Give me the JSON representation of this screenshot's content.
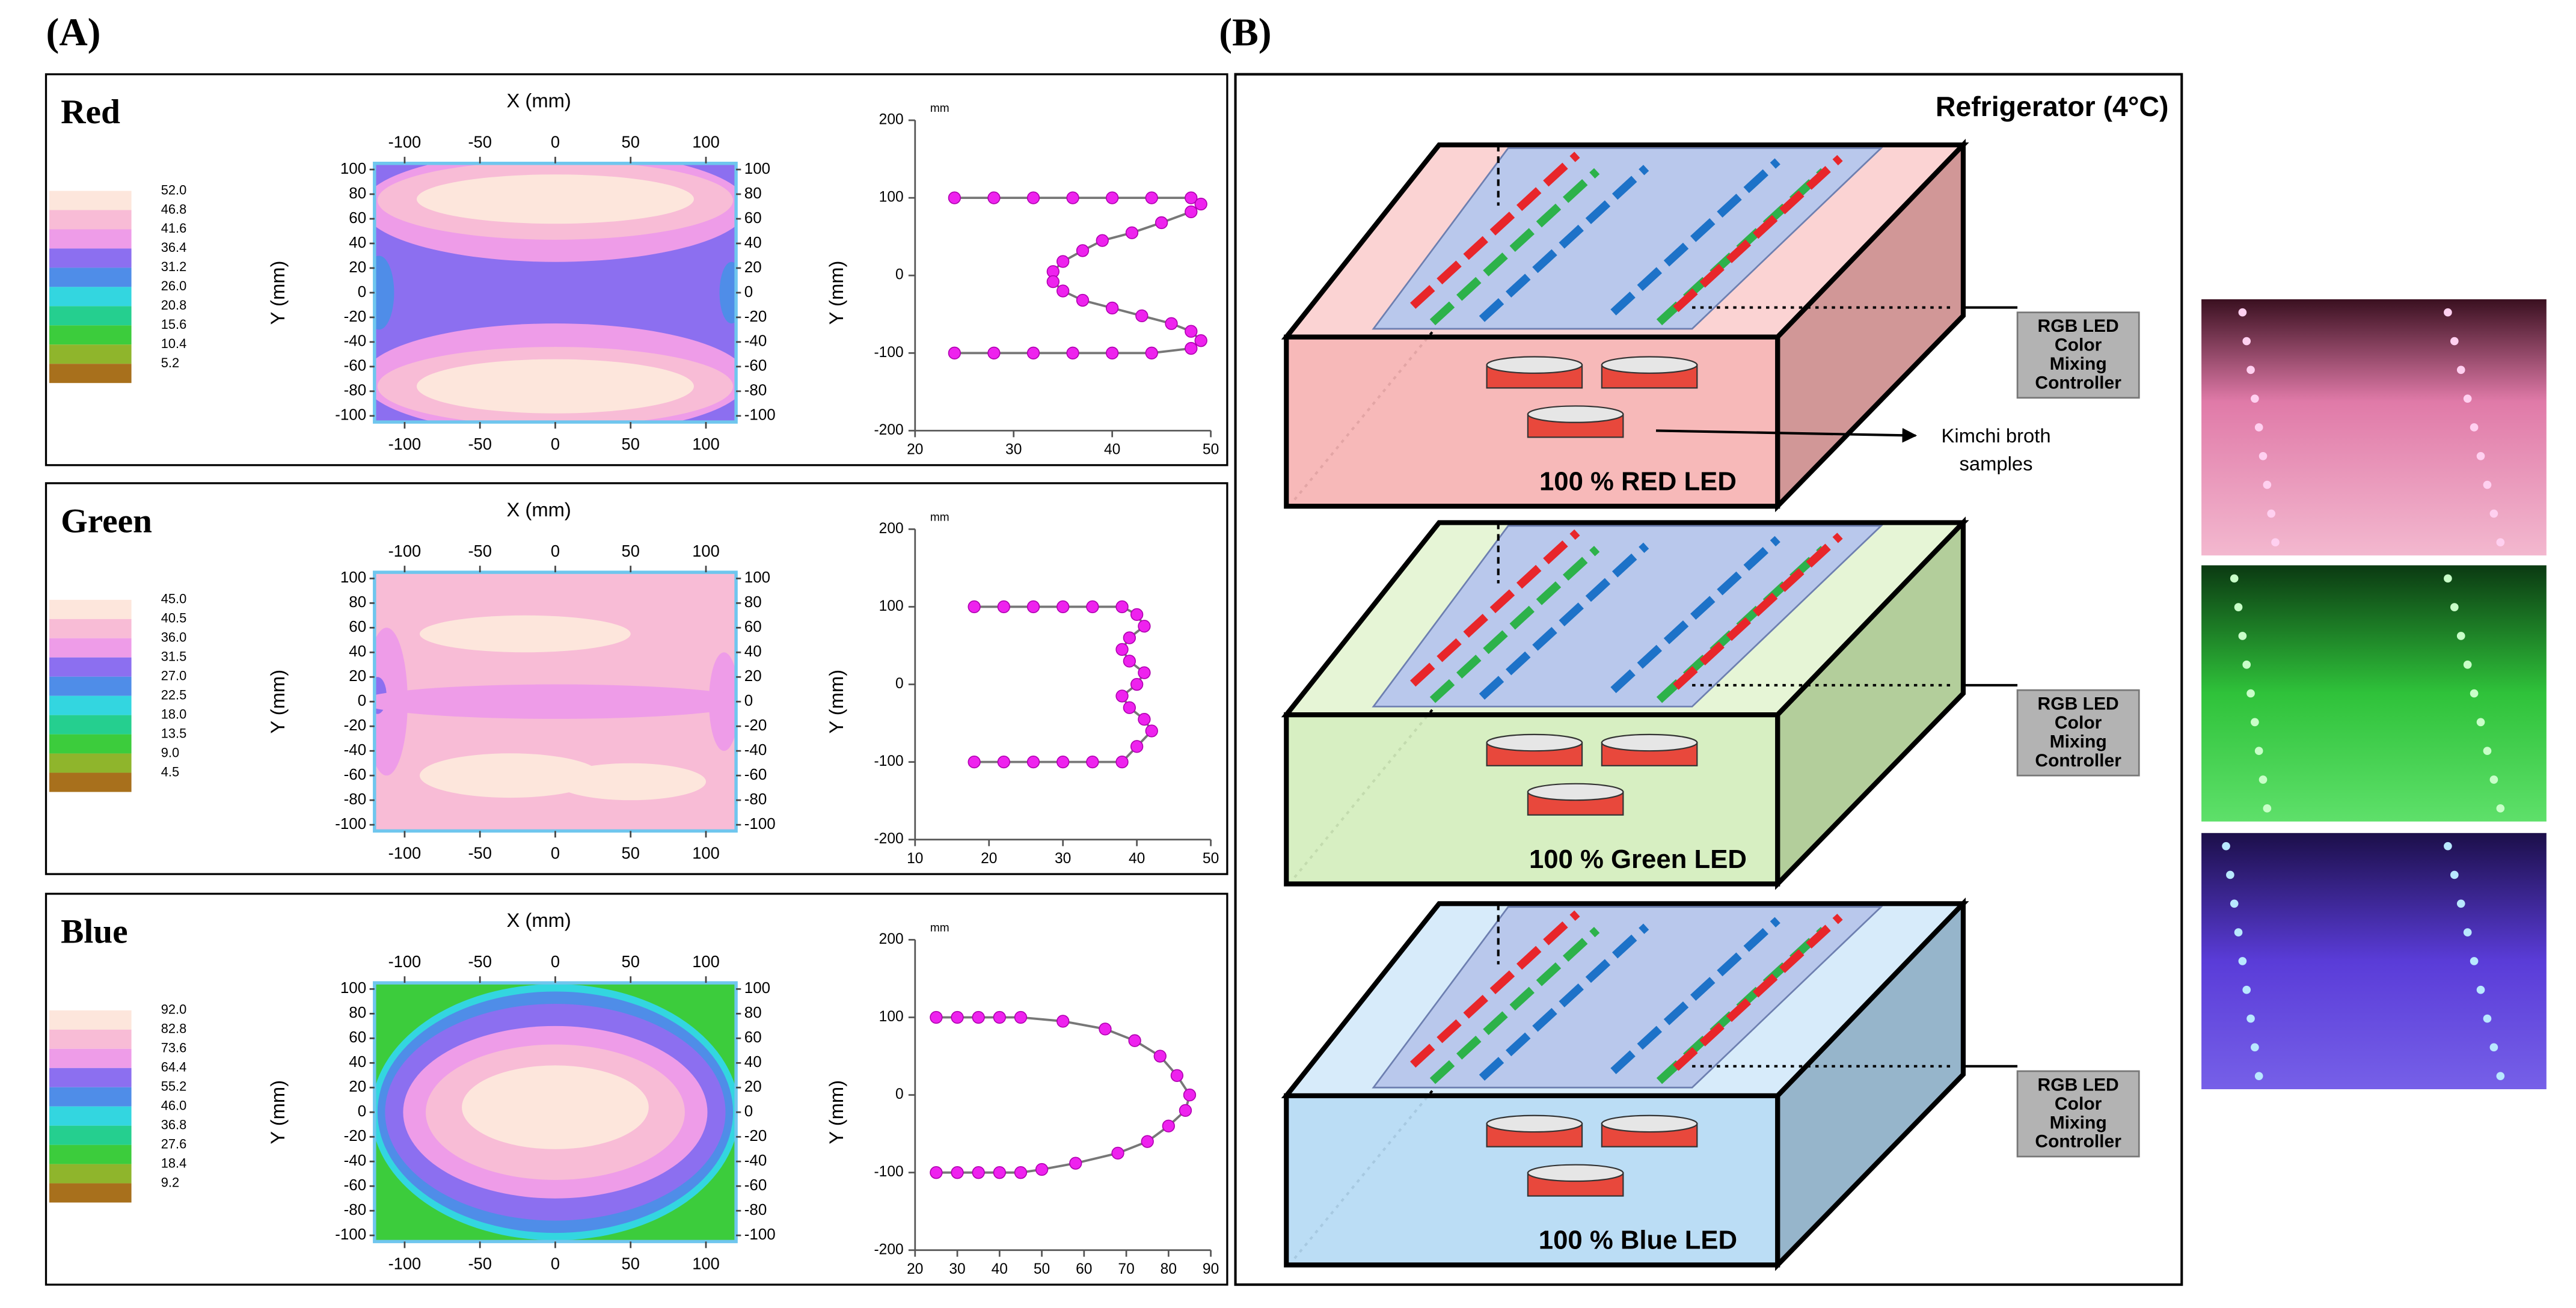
{
  "panel_a": {
    "label": "(A)",
    "rows": [
      {
        "name": "Red",
        "legend": [
          {
            "value": 52,
            "label": "52.0"
          },
          {
            "value": 46.8,
            "label": "46.8"
          },
          {
            "value": 41.6,
            "label": "41.6"
          },
          {
            "value": 36.4,
            "label": "36.4"
          },
          {
            "value": 31.2,
            "label": "31.2"
          },
          {
            "value": 26,
            "label": "26.0"
          },
          {
            "value": 20.8,
            "label": "20.8"
          },
          {
            "value": 15.6,
            "label": "15.6"
          },
          {
            "value": 10.4,
            "label": "10.4"
          },
          {
            "value": 5.2,
            "label": "5.2"
          }
        ],
        "map": {
          "x_label": "X (mm)",
          "y_label": "Y (mm)",
          "xlim": [
            -120,
            120
          ],
          "ylim": [
            -105,
            105
          ],
          "xticks": [
            -100,
            -50,
            0,
            50,
            100
          ],
          "yticks": [
            100,
            80,
            60,
            40,
            20,
            0,
            -20,
            -40,
            -60,
            -80,
            -100
          ]
        },
        "profile": {
          "type": "line",
          "unit": "mm",
          "color": "#ee22ee",
          "xlim": [
            20,
            50
          ],
          "xticks": [
            20,
            30,
            40,
            50
          ],
          "ylim": [
            -200,
            200
          ],
          "yticks": [
            200,
            100,
            0,
            -100,
            -200
          ],
          "x": [
            24,
            28,
            32,
            36,
            40,
            44,
            48,
            49,
            48,
            45,
            42,
            39,
            37,
            35,
            34,
            34,
            35,
            37,
            40,
            43,
            46,
            48,
            49,
            48,
            44,
            40,
            36,
            32,
            28,
            24
          ],
          "y": [
            100,
            100,
            100,
            100,
            100,
            100,
            100,
            92,
            82,
            68,
            55,
            45,
            32,
            18,
            5,
            -8,
            -20,
            -32,
            -42,
            -52,
            -62,
            -72,
            -84,
            -94,
            -100,
            -100,
            -100,
            -100,
            -100,
            -100
          ]
        }
      },
      {
        "name": "Green",
        "legend": [
          {
            "value": 45,
            "label": "45.0"
          },
          {
            "value": 40.5,
            "label": "40.5"
          },
          {
            "value": 36,
            "label": "36.0"
          },
          {
            "value": 31.5,
            "label": "31.5"
          },
          {
            "value": 27,
            "label": "27.0"
          },
          {
            "value": 22.5,
            "label": "22.5"
          },
          {
            "value": 18,
            "label": "18.0"
          },
          {
            "value": 13.5,
            "label": "13.5"
          },
          {
            "value": 9,
            "label": "9.0"
          },
          {
            "value": 4.5,
            "label": "4.5"
          }
        ],
        "map": {
          "x_label": "X (mm)",
          "y_label": "Y (mm)",
          "xlim": [
            -120,
            120
          ],
          "ylim": [
            -105,
            105
          ],
          "xticks": [
            -100,
            -50,
            0,
            50,
            100
          ],
          "yticks": [
            100,
            80,
            60,
            40,
            20,
            0,
            -20,
            -40,
            -60,
            -80,
            -100
          ]
        },
        "profile": {
          "type": "line",
          "unit": "mm",
          "color": "#ee22ee",
          "xlim": [
            10,
            50
          ],
          "xticks": [
            10,
            20,
            30,
            40,
            50
          ],
          "ylim": [
            -200,
            200
          ],
          "yticks": [
            200,
            100,
            0,
            -100,
            -200
          ],
          "x": [
            18,
            22,
            26,
            30,
            34,
            38,
            40,
            41,
            39,
            38,
            39,
            41,
            40,
            38,
            39,
            41,
            42,
            40,
            38,
            34,
            30,
            26,
            22,
            18
          ],
          "y": [
            100,
            100,
            100,
            100,
            100,
            100,
            90,
            75,
            60,
            45,
            30,
            15,
            0,
            -15,
            -30,
            -45,
            -60,
            -80,
            -100,
            -100,
            -100,
            -100,
            -100,
            -100
          ]
        }
      },
      {
        "name": "Blue",
        "legend": [
          {
            "value": 92,
            "label": "92.0"
          },
          {
            "value": 82.8,
            "label": "82.8"
          },
          {
            "value": 73.6,
            "label": "73.6"
          },
          {
            "value": 64.4,
            "label": "64.4"
          },
          {
            "value": 55.2,
            "label": "55.2"
          },
          {
            "value": 46,
            "label": "46.0"
          },
          {
            "value": 36.8,
            "label": "36.8"
          },
          {
            "value": 27.6,
            "label": "27.6"
          },
          {
            "value": 18.4,
            "label": "18.4"
          },
          {
            "value": 9.2,
            "label": "9.2"
          }
        ],
        "map": {
          "x_label": "X (mm)",
          "y_label": "Y (mm)",
          "xlim": [
            -120,
            120
          ],
          "ylim": [
            -105,
            105
          ],
          "xticks": [
            -100,
            -50,
            0,
            50,
            100
          ],
          "yticks": [
            100,
            80,
            60,
            40,
            20,
            0,
            -20,
            -40,
            -60,
            -80,
            -100
          ]
        },
        "profile": {
          "type": "line",
          "unit": "mm",
          "color": "#ee22ee",
          "xlim": [
            20,
            90
          ],
          "xticks": [
            20,
            30,
            40,
            50,
            60,
            70,
            80,
            90
          ],
          "ylim": [
            -200,
            200
          ],
          "yticks": [
            200,
            100,
            0,
            -100,
            -200
          ],
          "x": [
            25,
            30,
            35,
            40,
            45,
            55,
            65,
            72,
            78,
            82,
            85,
            84,
            80,
            75,
            68,
            58,
            50,
            45,
            40,
            35,
            30,
            25
          ],
          "y": [
            100,
            100,
            100,
            100,
            100,
            95,
            85,
            70,
            50,
            25,
            0,
            -20,
            -40,
            -60,
            -75,
            -88,
            -96,
            -100,
            -100,
            -100,
            -100,
            -100
          ]
        }
      }
    ],
    "legend_colors": [
      "#fde6dc",
      "#f8bcd6",
      "#ee9ce8",
      "#8c6ff0",
      "#4f8de8",
      "#33d6e0",
      "#25cf8f",
      "#3ccc3c",
      "#8fb52c",
      "#a8701c"
    ]
  },
  "panel_b": {
    "label": "(B)",
    "title": "Refrigerator (4°C)",
    "annotation": [
      "Kimchi broth",
      "samples"
    ],
    "boxes": [
      {
        "label": "100 % RED LED",
        "controller": [
          "RGB LED",
          "Color",
          "Mixing",
          "Controller"
        ],
        "colors": [
          "#fbd3d3",
          "#f6b3b3",
          "#c98585"
        ]
      },
      {
        "label": "100 % Green LED",
        "controller": [
          "RGB LED",
          "Color",
          "Mixing",
          "Controller"
        ],
        "colors": [
          "#e6f5d6",
          "#d4eebd",
          "#a6c589"
        ]
      },
      {
        "label": "100 % Blue LED",
        "controller": [
          "RGB LED",
          "Color",
          "Mixing",
          "Controller"
        ],
        "colors": [
          "#d7ebfa",
          "#b5daf4",
          "#84a8c2"
        ]
      }
    ]
  }
}
